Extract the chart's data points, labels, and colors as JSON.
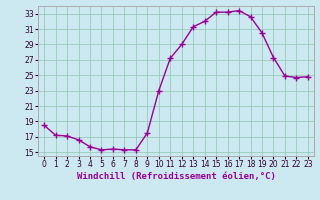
{
  "x": [
    0,
    1,
    2,
    3,
    4,
    5,
    6,
    7,
    8,
    9,
    10,
    11,
    12,
    13,
    14,
    15,
    16,
    17,
    18,
    19,
    20,
    21,
    22,
    23
  ],
  "y": [
    18.5,
    17.2,
    17.1,
    16.6,
    15.7,
    15.3,
    15.4,
    15.3,
    15.3,
    17.5,
    23.0,
    27.2,
    29.0,
    31.3,
    32.0,
    33.2,
    33.2,
    33.4,
    32.6,
    30.5,
    27.3,
    24.9,
    24.7,
    24.8
  ],
  "line_color": "#990099",
  "marker": "+",
  "marker_size": 4,
  "linewidth": 1.0,
  "xlabel": "Windchill (Refroidissement éolien,°C)",
  "xlabel_fontsize": 6.5,
  "xlim": [
    -0.5,
    23.5
  ],
  "ylim": [
    14.5,
    34.0
  ],
  "yticks": [
    15,
    17,
    19,
    21,
    23,
    25,
    27,
    29,
    31,
    33
  ],
  "xticks": [
    0,
    1,
    2,
    3,
    4,
    5,
    6,
    7,
    8,
    9,
    10,
    11,
    12,
    13,
    14,
    15,
    16,
    17,
    18,
    19,
    20,
    21,
    22,
    23
  ],
  "bg_color": "#cce8f0",
  "grid_color": "#99ccbb",
  "tick_fontsize": 5.5,
  "spine_color": "#aaaaaa"
}
